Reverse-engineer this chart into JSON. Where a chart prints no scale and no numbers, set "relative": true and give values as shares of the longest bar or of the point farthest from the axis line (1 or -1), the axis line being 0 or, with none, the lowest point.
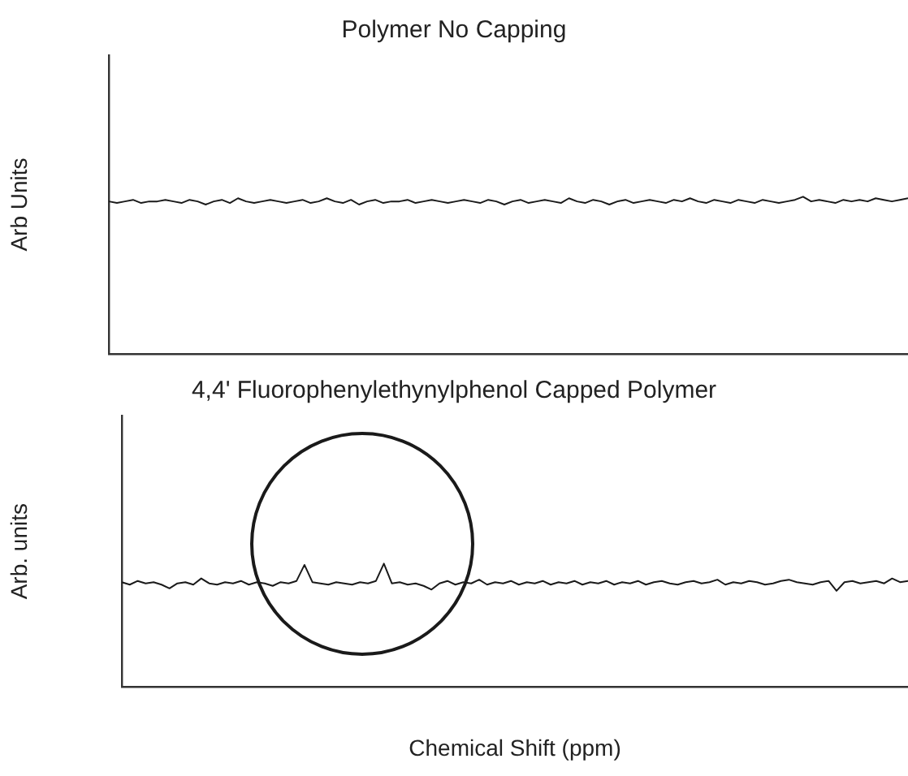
{
  "chart_data": [
    {
      "type": "line",
      "title": "Polymer No Capping",
      "ylabel": "Arb Units",
      "relative": true,
      "legend": false,
      "grid": false,
      "categories": [
        null,
        null,
        null,
        null,
        null,
        null,
        null,
        null,
        null,
        null,
        null,
        null,
        null,
        null,
        null,
        null,
        null,
        null,
        null,
        null,
        null,
        null,
        null,
        null,
        null,
        null,
        null,
        null,
        null,
        null,
        null,
        null,
        null,
        null,
        null,
        null,
        null,
        null,
        null,
        null,
        null,
        null,
        null,
        null,
        null,
        null,
        null,
        null,
        null,
        null,
        null,
        null,
        null,
        null,
        null,
        null,
        null,
        null,
        null,
        null,
        null,
        null,
        null,
        null,
        null,
        null,
        null,
        null,
        null,
        null,
        null,
        null,
        null,
        null,
        null,
        null,
        null,
        null,
        null,
        null,
        null,
        null,
        null,
        null,
        null,
        null,
        null,
        null,
        null,
        null,
        null,
        null,
        null,
        null,
        null,
        null,
        null,
        null,
        null,
        null
      ],
      "series": [
        {
          "color": "#1a1a1a",
          "values": [
            0.97,
            0.96,
            0.97,
            0.98,
            0.96,
            0.97,
            0.97,
            0.98,
            0.97,
            0.96,
            0.98,
            0.97,
            0.95,
            0.97,
            0.98,
            0.96,
            0.99,
            0.97,
            0.96,
            0.97,
            0.98,
            0.97,
            0.96,
            0.97,
            0.98,
            0.96,
            0.97,
            0.99,
            0.97,
            0.96,
            0.98,
            0.95,
            0.97,
            0.98,
            0.96,
            0.97,
            0.97,
            0.98,
            0.96,
            0.97,
            0.98,
            0.97,
            0.96,
            0.97,
            0.98,
            0.97,
            0.96,
            0.98,
            0.97,
            0.95,
            0.97,
            0.98,
            0.96,
            0.97,
            0.98,
            0.97,
            0.96,
            0.99,
            0.97,
            0.96,
            0.98,
            0.97,
            0.95,
            0.97,
            0.98,
            0.96,
            0.97,
            0.98,
            0.97,
            0.96,
            0.98,
            0.97,
            0.99,
            0.97,
            0.96,
            0.98,
            0.97,
            0.96,
            0.98,
            0.97,
            0.96,
            0.98,
            0.97,
            0.96,
            0.97,
            0.98,
            1,
            0.97,
            0.98,
            0.97,
            0.96,
            0.98,
            0.97,
            0.98,
            0.97,
            0.99,
            0.98,
            0.97,
            0.98,
            0.99
          ]
        }
      ]
    },
    {
      "type": "line",
      "title": "4,4' Fluorophenylethynylphenol Capped Polymer",
      "ylabel": "Arb. units",
      "xlabel": "Chemical Shift (ppm)",
      "relative": true,
      "legend": false,
      "grid": false,
      "categories": [
        null,
        null,
        null,
        null,
        null,
        null,
        null,
        null,
        null,
        null,
        null,
        null,
        null,
        null,
        null,
        null,
        null,
        null,
        null,
        null,
        null,
        null,
        null,
        null,
        null,
        null,
        null,
        null,
        null,
        null,
        null,
        null,
        null,
        null,
        null,
        null,
        null,
        null,
        null,
        null,
        null,
        null,
        null,
        null,
        null,
        null,
        null,
        null,
        null,
        null,
        null,
        null,
        null,
        null,
        null,
        null,
        null,
        null,
        null,
        null,
        null,
        null,
        null,
        null,
        null,
        null,
        null,
        null,
        null,
        null,
        null,
        null,
        null,
        null,
        null,
        null,
        null,
        null,
        null,
        null,
        null,
        null,
        null,
        null,
        null,
        null,
        null,
        null,
        null,
        null,
        null,
        null,
        null,
        null,
        null,
        null,
        null,
        null,
        null,
        null
      ],
      "series": [
        {
          "color": "#1a1a1a",
          "values": [
            0.85,
            0.83,
            0.86,
            0.84,
            0.85,
            0.83,
            0.8,
            0.84,
            0.85,
            0.83,
            0.88,
            0.84,
            0.83,
            0.85,
            0.84,
            0.86,
            0.83,
            0.85,
            0.84,
            0.82,
            0.85,
            0.84,
            0.86,
            0.99,
            0.85,
            0.84,
            0.83,
            0.85,
            0.84,
            0.83,
            0.85,
            0.84,
            0.86,
            1,
            0.84,
            0.85,
            0.83,
            0.84,
            0.82,
            0.79,
            0.84,
            0.86,
            0.83,
            0.85,
            0.84,
            0.87,
            0.83,
            0.85,
            0.84,
            0.86,
            0.83,
            0.85,
            0.84,
            0.86,
            0.83,
            0.85,
            0.84,
            0.86,
            0.83,
            0.85,
            0.84,
            0.86,
            0.83,
            0.85,
            0.84,
            0.86,
            0.83,
            0.85,
            0.86,
            0.84,
            0.83,
            0.85,
            0.86,
            0.84,
            0.85,
            0.87,
            0.83,
            0.85,
            0.84,
            0.86,
            0.85,
            0.83,
            0.84,
            0.86,
            0.87,
            0.85,
            0.84,
            0.83,
            0.85,
            0.86,
            0.78,
            0.85,
            0.86,
            0.84,
            0.85,
            0.86,
            0.84,
            0.88,
            0.85,
            0.86
          ]
        }
      ]
    }
  ]
}
